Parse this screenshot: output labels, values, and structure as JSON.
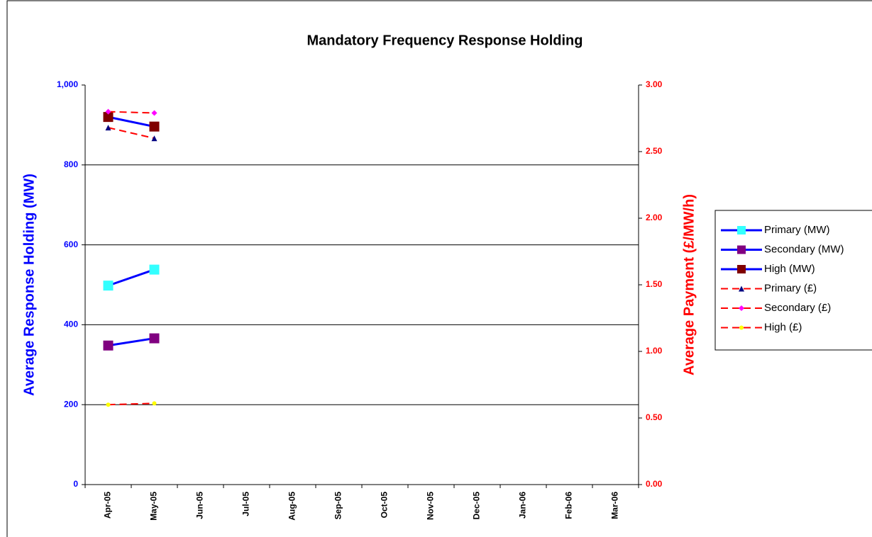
{
  "chart_data": {
    "type": "line",
    "title": "Mandatory Frequency Response Holding",
    "y_label": "Average Response Holding (MW)",
    "y2_label": "Average Payment (£/MW/h)",
    "categories": [
      "Apr-05",
      "May-05",
      "Jun-05",
      "Jul-05",
      "Aug-05",
      "Sep-05",
      "Oct-05",
      "Nov-05",
      "Dec-05",
      "Jan-06",
      "Feb-06",
      "Mar-06"
    ],
    "series": [
      {
        "name": "Primary (MW)",
        "color": "#0000ff",
        "marker_color": "#33ffff",
        "marker": "square",
        "dash": false,
        "values": [
          498,
          538,
          null,
          null,
          null,
          null,
          null,
          null,
          null,
          null,
          null,
          null
        ]
      },
      {
        "name": "Secondary (MW)",
        "color": "#0000ff",
        "marker_color": "#800080",
        "marker": "square",
        "dash": false,
        "values": [
          348,
          366,
          null,
          null,
          null,
          null,
          null,
          null,
          null,
          null,
          null,
          null
        ]
      },
      {
        "name": "High (MW)",
        "color": "#0000ff",
        "marker_color": "#800000",
        "marker": "square",
        "dash": false,
        "values": [
          920,
          896,
          null,
          null,
          null,
          null,
          null,
          null,
          null,
          null,
          null,
          null
        ]
      },
      {
        "name": "Primary (£)",
        "color": "#ff0000",
        "marker_color": "#000080",
        "marker": "triangle",
        "dash": true,
        "axis": "y2",
        "values": [
          2.68,
          2.6,
          null,
          null,
          null,
          null,
          null,
          null,
          null,
          null,
          null,
          null
        ]
      },
      {
        "name": "Secondary (£)",
        "color": "#ff0000",
        "marker_color": "#ff00ff",
        "marker": "diamond",
        "dash": true,
        "axis": "y2",
        "values": [
          2.8,
          2.79,
          null,
          null,
          null,
          null,
          null,
          null,
          null,
          null,
          null,
          null
        ]
      },
      {
        "name": "High (£)",
        "color": "#ff0000",
        "marker_color": "#ffff00",
        "marker": "circle",
        "dash": true,
        "axis": "y2",
        "values": [
          0.6,
          0.61,
          null,
          null,
          null,
          null,
          null,
          null,
          null,
          null,
          null,
          null
        ]
      }
    ],
    "ylim": [
      0,
      1000
    ],
    "yticks": [
      0,
      200,
      400,
      600,
      800,
      {
        "value": 1000,
        "label": "1,000"
      }
    ],
    "y2lim": [
      0,
      3
    ],
    "y2ticks": [
      {
        "value": 0,
        "label": "0.00"
      },
      {
        "value": 0.5,
        "label": "0.50"
      },
      {
        "value": 1,
        "label": "1.00"
      },
      {
        "value": 1.5,
        "label": "1.50"
      },
      {
        "value": 2,
        "label": "2.00"
      },
      {
        "value": 2.5,
        "label": "2.50"
      },
      {
        "value": 3,
        "label": "3.00"
      }
    ],
    "grid": true,
    "legend": "right"
  }
}
